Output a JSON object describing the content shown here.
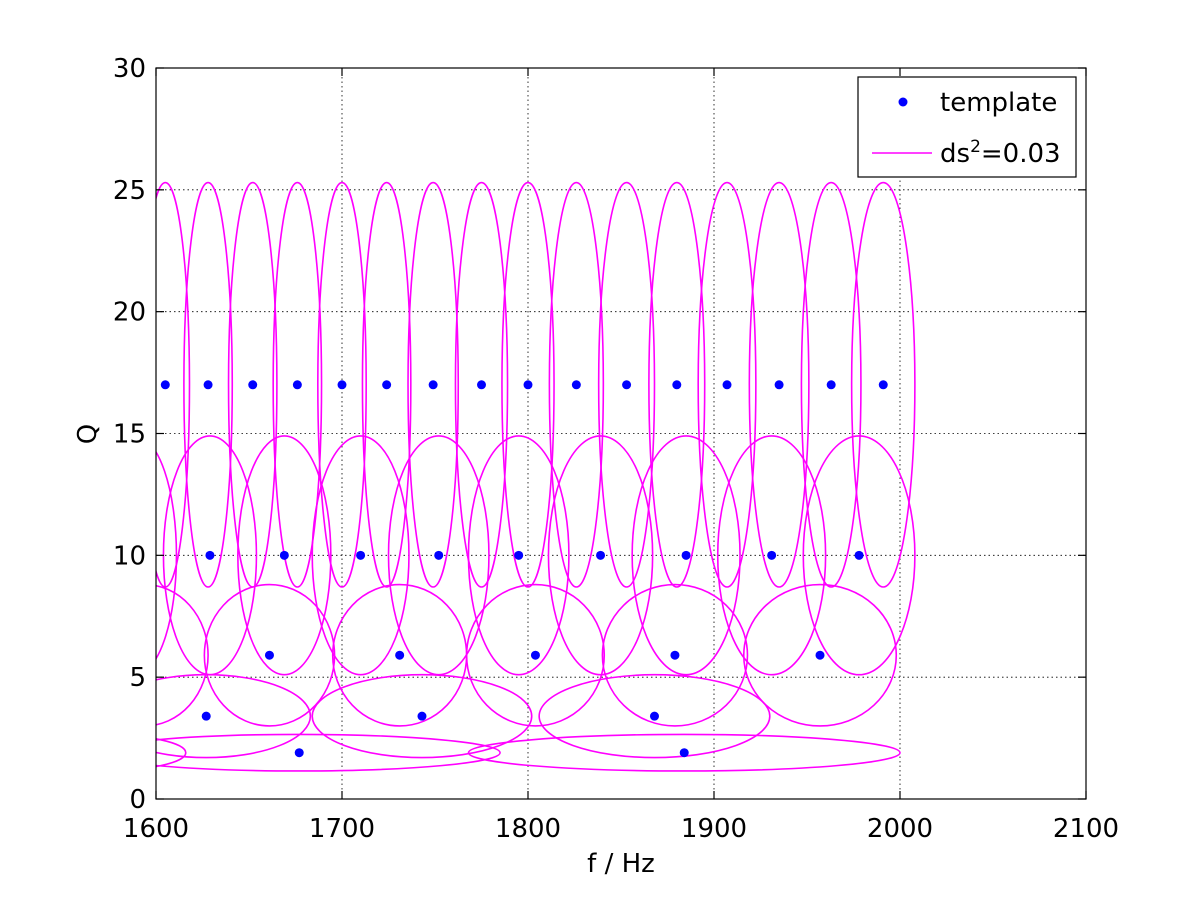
{
  "chart_data": {
    "type": "scatter",
    "title": "",
    "xlabel": "f / Hz",
    "ylabel": "Q",
    "xlim": [
      1600,
      2100
    ],
    "ylim": [
      0,
      30
    ],
    "xticks": [
      1600,
      1700,
      1800,
      1900,
      2000,
      2100
    ],
    "yticks": [
      0,
      5,
      10,
      15,
      20,
      25,
      30
    ],
    "grid": true,
    "legend_position": "top-right",
    "series": [
      {
        "name": "template",
        "kind": "points",
        "color": "#0000ff",
        "points": [
          {
            "f": 1605,
            "Q": 17
          },
          {
            "f": 1628,
            "Q": 17
          },
          {
            "f": 1652,
            "Q": 17
          },
          {
            "f": 1676,
            "Q": 17
          },
          {
            "f": 1700,
            "Q": 17
          },
          {
            "f": 1724,
            "Q": 17
          },
          {
            "f": 1749,
            "Q": 17
          },
          {
            "f": 1775,
            "Q": 17
          },
          {
            "f": 1800,
            "Q": 17
          },
          {
            "f": 1826,
            "Q": 17
          },
          {
            "f": 1853,
            "Q": 17
          },
          {
            "f": 1880,
            "Q": 17
          },
          {
            "f": 1907,
            "Q": 17
          },
          {
            "f": 1935,
            "Q": 17
          },
          {
            "f": 1963,
            "Q": 17
          },
          {
            "f": 1991,
            "Q": 17
          },
          {
            "f": 1629,
            "Q": 10
          },
          {
            "f": 1669,
            "Q": 10
          },
          {
            "f": 1710,
            "Q": 10
          },
          {
            "f": 1752,
            "Q": 10
          },
          {
            "f": 1795,
            "Q": 10
          },
          {
            "f": 1839,
            "Q": 10
          },
          {
            "f": 1885,
            "Q": 10
          },
          {
            "f": 1931,
            "Q": 10
          },
          {
            "f": 1978,
            "Q": 10
          },
          {
            "f": 1661,
            "Q": 5.9
          },
          {
            "f": 1731,
            "Q": 5.9
          },
          {
            "f": 1804,
            "Q": 5.9
          },
          {
            "f": 1879,
            "Q": 5.9
          },
          {
            "f": 1957,
            "Q": 5.9
          },
          {
            "f": 1627,
            "Q": 3.4
          },
          {
            "f": 1743,
            "Q": 3.4
          },
          {
            "f": 1868,
            "Q": 3.4
          },
          {
            "f": 1677,
            "Q": 1.9
          },
          {
            "f": 1884,
            "Q": 1.9
          }
        ]
      },
      {
        "name": "ds²=0.03",
        "kind": "ellipses",
        "color": "#ff00ff",
        "ellipses": [
          {
            "f": 1605,
            "Q": 17,
            "df": 13,
            "dQ": 8.3
          },
          {
            "f": 1628,
            "Q": 17,
            "df": 13,
            "dQ": 8.3
          },
          {
            "f": 1652,
            "Q": 17,
            "df": 13,
            "dQ": 8.3
          },
          {
            "f": 1676,
            "Q": 17,
            "df": 13,
            "dQ": 8.3
          },
          {
            "f": 1700,
            "Q": 17,
            "df": 13,
            "dQ": 8.3
          },
          {
            "f": 1724,
            "Q": 17,
            "df": 13,
            "dQ": 8.3
          },
          {
            "f": 1749,
            "Q": 17,
            "df": 13.5,
            "dQ": 8.3
          },
          {
            "f": 1775,
            "Q": 17,
            "df": 14,
            "dQ": 8.3
          },
          {
            "f": 1800,
            "Q": 17,
            "df": 14,
            "dQ": 8.3
          },
          {
            "f": 1826,
            "Q": 17,
            "df": 14.5,
            "dQ": 8.3
          },
          {
            "f": 1853,
            "Q": 17,
            "df": 15,
            "dQ": 8.3
          },
          {
            "f": 1880,
            "Q": 17,
            "df": 15,
            "dQ": 8.3
          },
          {
            "f": 1907,
            "Q": 17,
            "df": 15.5,
            "dQ": 8.3
          },
          {
            "f": 1935,
            "Q": 17,
            "df": 16,
            "dQ": 8.3
          },
          {
            "f": 1963,
            "Q": 17,
            "df": 16,
            "dQ": 8.3
          },
          {
            "f": 1991,
            "Q": 17,
            "df": 17,
            "dQ": 8.3
          },
          {
            "f": 1589,
            "Q": 10,
            "df": 22,
            "dQ": 4.9
          },
          {
            "f": 1629,
            "Q": 10,
            "df": 25,
            "dQ": 4.9
          },
          {
            "f": 1669,
            "Q": 10,
            "df": 25,
            "dQ": 4.9
          },
          {
            "f": 1710,
            "Q": 10,
            "df": 26,
            "dQ": 4.9
          },
          {
            "f": 1752,
            "Q": 10,
            "df": 27,
            "dQ": 4.9
          },
          {
            "f": 1795,
            "Q": 10,
            "df": 27,
            "dQ": 4.9
          },
          {
            "f": 1839,
            "Q": 10,
            "df": 28,
            "dQ": 4.9
          },
          {
            "f": 1885,
            "Q": 10,
            "df": 29,
            "dQ": 4.9
          },
          {
            "f": 1931,
            "Q": 10,
            "df": 29,
            "dQ": 4.9
          },
          {
            "f": 1978,
            "Q": 10,
            "df": 30,
            "dQ": 4.9
          },
          {
            "f": 1594,
            "Q": 5.9,
            "df": 34,
            "dQ": 2.9
          },
          {
            "f": 1661,
            "Q": 5.9,
            "df": 35,
            "dQ": 2.9
          },
          {
            "f": 1731,
            "Q": 5.9,
            "df": 36,
            "dQ": 2.9
          },
          {
            "f": 1804,
            "Q": 5.9,
            "df": 37,
            "dQ": 2.9
          },
          {
            "f": 1879,
            "Q": 5.9,
            "df": 39,
            "dQ": 2.9
          },
          {
            "f": 1957,
            "Q": 5.9,
            "df": 41,
            "dQ": 2.9
          },
          {
            "f": 1627,
            "Q": 3.4,
            "df": 56,
            "dQ": 1.7
          },
          {
            "f": 1743,
            "Q": 3.4,
            "df": 59,
            "dQ": 1.7
          },
          {
            "f": 1868,
            "Q": 3.4,
            "df": 62,
            "dQ": 1.7
          },
          {
            "f": 1570,
            "Q": 1.9,
            "df": 46,
            "dQ": 0.75
          },
          {
            "f": 1677,
            "Q": 1.9,
            "df": 108,
            "dQ": 0.75
          },
          {
            "f": 1884,
            "Q": 1.9,
            "df": 116,
            "dQ": 0.75
          }
        ]
      }
    ]
  },
  "legend": {
    "items": [
      {
        "label": "template",
        "color": "#0000ff",
        "marker": "dot"
      },
      {
        "label_base": "ds",
        "label_sup": "2",
        "label_rest": "=0.03",
        "color": "#ff00ff",
        "marker": "line"
      }
    ]
  }
}
